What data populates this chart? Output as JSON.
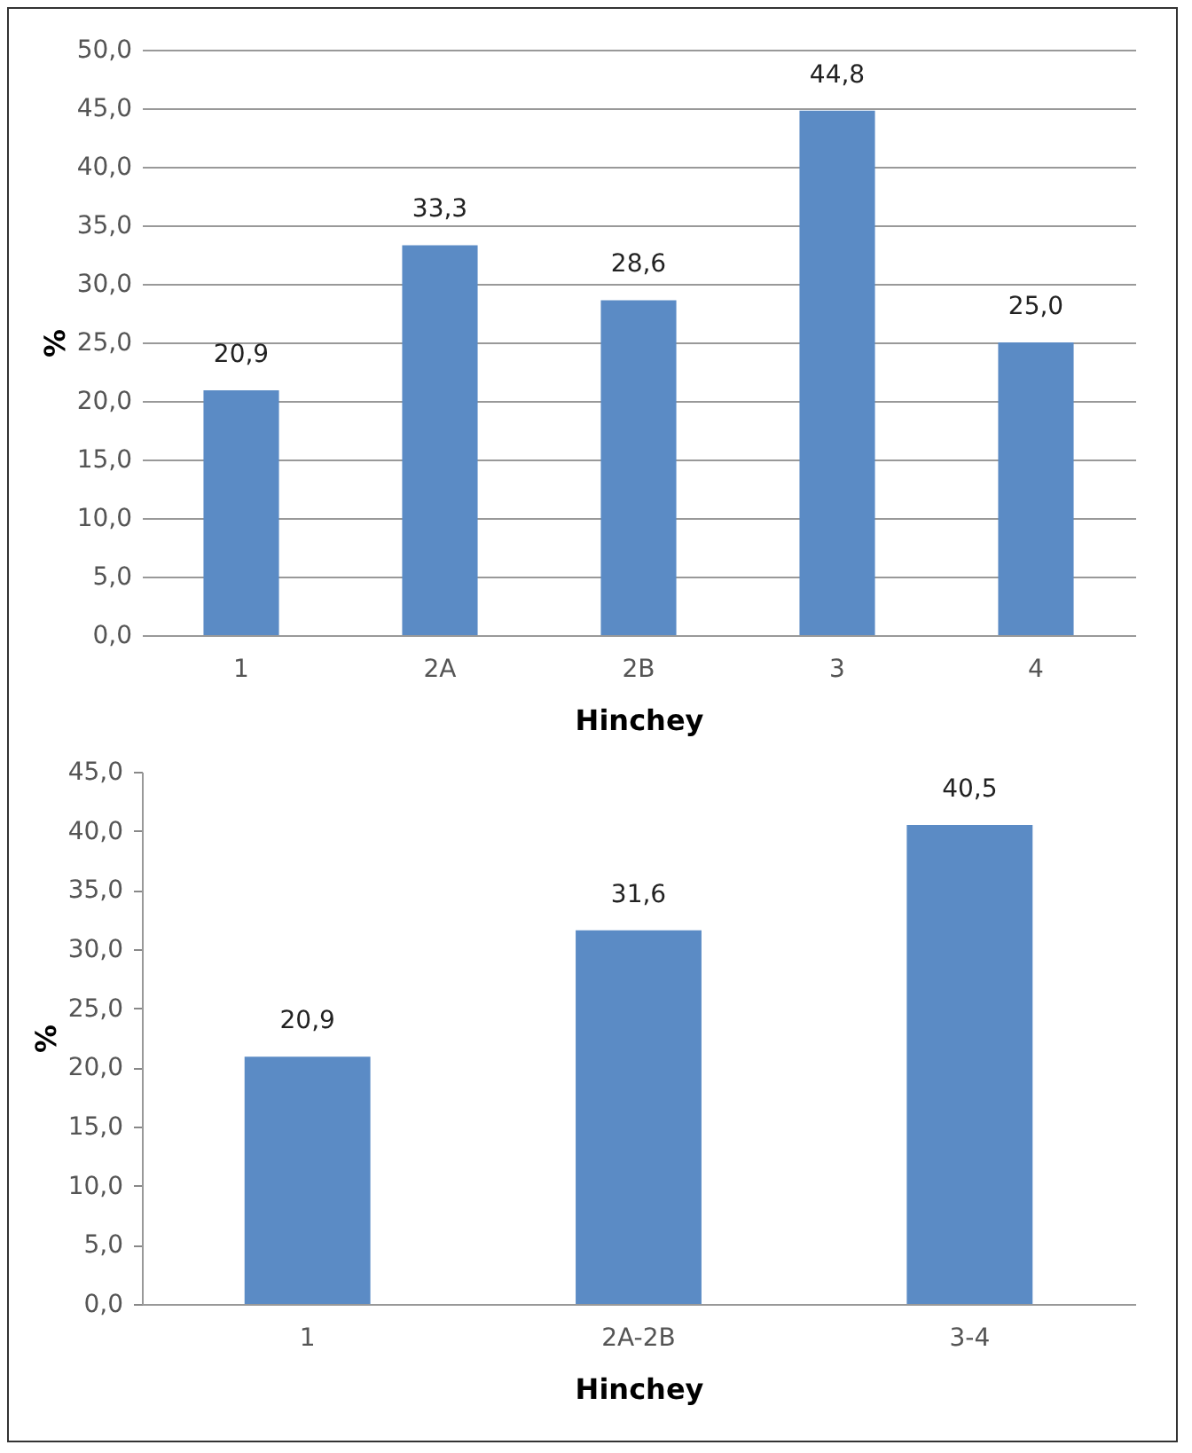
{
  "chart_data": [
    {
      "type": "bar",
      "xlabel": "Hinchey",
      "ylabel": "%",
      "categories": [
        "1",
        "2A",
        "2B",
        "3",
        "4"
      ],
      "values": [
        20.9,
        33.3,
        28.6,
        44.8,
        25.0
      ],
      "color": "#5b8bc5",
      "value_labels": [
        "20,9",
        "33,3",
        "28,6",
        "44,8",
        "25,0"
      ],
      "ylim": [
        0,
        50
      ],
      "yticks": [
        {
          "value": 0,
          "label": "0,0"
        },
        {
          "value": 5,
          "label": "5,0"
        },
        {
          "value": 10,
          "label": "10,0"
        },
        {
          "value": 15,
          "label": "15,0"
        },
        {
          "value": 20,
          "label": "20,0"
        },
        {
          "value": 25,
          "label": "25,0"
        },
        {
          "value": 30,
          "label": "30,0"
        },
        {
          "value": 35,
          "label": "35,0"
        },
        {
          "value": 40,
          "label": "40,0"
        },
        {
          "value": 45,
          "label": "45,0"
        },
        {
          "value": 50,
          "label": "50,0"
        }
      ],
      "grid": "y"
    },
    {
      "type": "bar",
      "xlabel": "Hinchey",
      "ylabel": "%",
      "categories": [
        "1",
        "2A-2B",
        "3-4"
      ],
      "values": [
        20.9,
        31.6,
        40.5
      ],
      "color": "#5b8bc5",
      "value_labels": [
        "20,9",
        "31,6",
        "40,5"
      ],
      "ylim": [
        0,
        45
      ],
      "yticks": [
        {
          "value": 0,
          "label": "0,0"
        },
        {
          "value": 5,
          "label": "5,0"
        },
        {
          "value": 10,
          "label": "10,0"
        },
        {
          "value": 15,
          "label": "15,0"
        },
        {
          "value": 20,
          "label": "20,0"
        },
        {
          "value": 25,
          "label": "25,0"
        },
        {
          "value": 30,
          "label": "30,0"
        },
        {
          "value": 35,
          "label": "35,0"
        },
        {
          "value": 40,
          "label": "40,0"
        },
        {
          "value": 45,
          "label": "45,0"
        }
      ]
    }
  ]
}
